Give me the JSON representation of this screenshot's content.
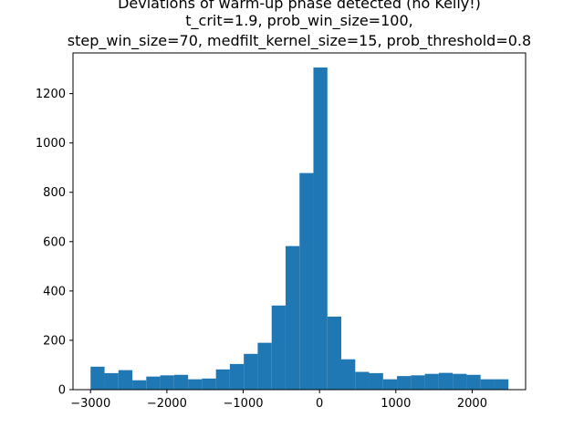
{
  "chart_data": {
    "type": "bar",
    "title_lines": [
      "Deviations of warm-up phase detected (no Kelly!)",
      "t_crit=1.9, prob_win_size=100,",
      "step_win_size=70, medfilt_kernel_size=15, prob_threshold=0.8"
    ],
    "xlabel": "",
    "ylabel": "",
    "xlim": [
      -3230,
      2700
    ],
    "ylim": [
      0,
      1365
    ],
    "x_ticks": [
      -3000,
      -2000,
      -1000,
      0,
      1000,
      2000
    ],
    "y_ticks": [
      0,
      200,
      400,
      600,
      800,
      1000,
      1200
    ],
    "bar_color": "#1f77b4",
    "bins": [
      {
        "left": -3000,
        "right": -2817,
        "value": 93
      },
      {
        "left": -2817,
        "right": -2635,
        "value": 67
      },
      {
        "left": -2635,
        "right": -2452,
        "value": 79
      },
      {
        "left": -2452,
        "right": -2270,
        "value": 38
      },
      {
        "left": -2270,
        "right": -2087,
        "value": 53
      },
      {
        "left": -2087,
        "right": -1905,
        "value": 58
      },
      {
        "left": -1905,
        "right": -1722,
        "value": 60
      },
      {
        "left": -1722,
        "right": -1540,
        "value": 42
      },
      {
        "left": -1540,
        "right": -1357,
        "value": 45
      },
      {
        "left": -1357,
        "right": -1175,
        "value": 82
      },
      {
        "left": -1175,
        "right": -992,
        "value": 104
      },
      {
        "left": -992,
        "right": -810,
        "value": 145
      },
      {
        "left": -810,
        "right": -627,
        "value": 190
      },
      {
        "left": -627,
        "right": -445,
        "value": 341
      },
      {
        "left": -445,
        "right": -262,
        "value": 582
      },
      {
        "left": -262,
        "right": -80,
        "value": 878
      },
      {
        "left": -80,
        "right": 103,
        "value": 1306
      },
      {
        "left": 103,
        "right": 285,
        "value": 296
      },
      {
        "left": 285,
        "right": 468,
        "value": 123
      },
      {
        "left": 468,
        "right": 650,
        "value": 72
      },
      {
        "left": 650,
        "right": 833,
        "value": 67
      },
      {
        "left": 833,
        "right": 1015,
        "value": 42
      },
      {
        "left": 1015,
        "right": 1198,
        "value": 55
      },
      {
        "left": 1198,
        "right": 1380,
        "value": 58
      },
      {
        "left": 1380,
        "right": 1563,
        "value": 64
      },
      {
        "left": 1563,
        "right": 1745,
        "value": 68
      },
      {
        "left": 1745,
        "right": 1928,
        "value": 64
      },
      {
        "left": 1928,
        "right": 2110,
        "value": 60
      },
      {
        "left": 2110,
        "right": 2293,
        "value": 42
      },
      {
        "left": 2293,
        "right": 2475,
        "value": 42
      }
    ]
  }
}
